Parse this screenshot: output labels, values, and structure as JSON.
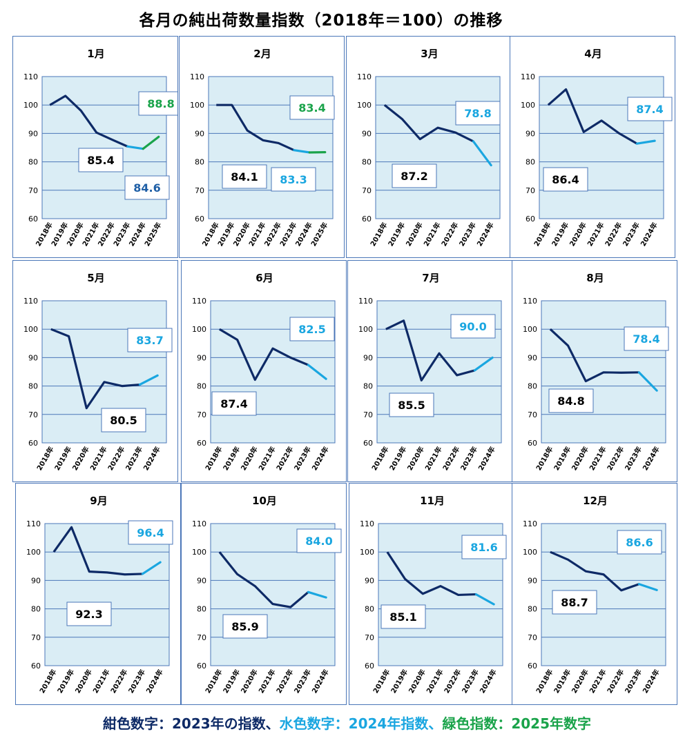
{
  "title": "各月の純出荷数量指数（2018年＝100）の推移",
  "legend": {
    "navy_label": "紺色数字：2023年の指数、",
    "cyan_label": "水色数字：2024年指数、",
    "green_label": "緑色指数：2025年数字",
    "colors": {
      "navy": "#0e2a66",
      "cyan": "#1aa6e0",
      "green": "#1aa34a"
    }
  },
  "chart_data": [
    {
      "type": "line",
      "title": "1月",
      "years": [
        "2018年",
        "2019年",
        "2020年",
        "2021年",
        "2022年",
        "2023年",
        "2024年",
        "2025年"
      ],
      "values": [
        100,
        103.2,
        98,
        90.3,
        87.8,
        85.4,
        84.6,
        88.8
      ],
      "ylim": [
        60,
        110
      ],
      "yticks": [
        60,
        70,
        80,
        90,
        100,
        110
      ],
      "labels": {
        "2023": "85.4",
        "2024": "84.6",
        "2025": "88.8"
      }
    },
    {
      "type": "line",
      "title": "2月",
      "years": [
        "2018年",
        "2019年",
        "2020年",
        "2021年",
        "2022年",
        "2023年",
        "2024年",
        "2025年"
      ],
      "values": [
        100,
        100,
        91,
        87.6,
        86.6,
        84.1,
        83.3,
        83.4
      ],
      "ylim": [
        60,
        110
      ],
      "yticks": [
        60,
        70,
        80,
        90,
        100,
        110
      ],
      "labels": {
        "2023": "84.1",
        "2024": "83.3",
        "2025": "83.4"
      }
    },
    {
      "type": "line",
      "title": "3月",
      "years": [
        "2018年",
        "2019年",
        "2020年",
        "2021年",
        "2022年",
        "2023年",
        "2024年"
      ],
      "values": [
        100,
        95,
        88,
        92,
        90.3,
        87.2,
        78.8
      ],
      "ylim": [
        60,
        110
      ],
      "yticks": [
        60,
        70,
        80,
        90,
        100,
        110
      ],
      "labels": {
        "2023": "87.2",
        "2024": "78.8"
      }
    },
    {
      "type": "line",
      "title": "4月",
      "years": [
        "2018年",
        "2019年",
        "2020年",
        "2021年",
        "2022年",
        "2023年",
        "2024年"
      ],
      "values": [
        100,
        105.5,
        90.5,
        94.5,
        90,
        86.4,
        87.4
      ],
      "ylim": [
        60,
        110
      ],
      "yticks": [
        60,
        70,
        80,
        90,
        100,
        110
      ],
      "labels": {
        "2023": "86.4",
        "2024": "87.4"
      }
    },
    {
      "type": "line",
      "title": "5月",
      "years": [
        "2018年",
        "2019年",
        "2020年",
        "2021年",
        "2022年",
        "2023年",
        "2024年"
      ],
      "values": [
        100,
        97.5,
        72.2,
        81.4,
        80,
        80.5,
        83.7
      ],
      "ylim": [
        60,
        110
      ],
      "yticks": [
        60,
        70,
        80,
        90,
        100,
        110
      ],
      "labels": {
        "2023": "80.5",
        "2024": "83.7"
      }
    },
    {
      "type": "line",
      "title": "6月",
      "years": [
        "2018年",
        "2019年",
        "2020年",
        "2021年",
        "2022年",
        "2023年",
        "2024年"
      ],
      "values": [
        100,
        96.3,
        82.2,
        93.2,
        90,
        87.4,
        82.5
      ],
      "ylim": [
        60,
        110
      ],
      "yticks": [
        60,
        70,
        80,
        90,
        100,
        110
      ],
      "labels": {
        "2023": "87.4",
        "2024": "82.5"
      }
    },
    {
      "type": "line",
      "title": "7月",
      "years": [
        "2018年",
        "2019年",
        "2020年",
        "2021年",
        "2022年",
        "2023年",
        "2024年"
      ],
      "values": [
        100,
        103,
        82,
        91.5,
        83.8,
        85.5,
        90.0
      ],
      "ylim": [
        60,
        110
      ],
      "yticks": [
        60,
        70,
        80,
        90,
        100,
        110
      ],
      "labels": {
        "2023": "85.5",
        "2024": "90.0"
      }
    },
    {
      "type": "line",
      "title": "8月",
      "years": [
        "2018年",
        "2019年",
        "2020年",
        "2021年",
        "2022年",
        "2023年",
        "2024年"
      ],
      "values": [
        100,
        94.2,
        81.7,
        84.8,
        84.7,
        84.8,
        78.4
      ],
      "ylim": [
        60,
        110
      ],
      "yticks": [
        60,
        70,
        80,
        90,
        100,
        110
      ],
      "labels": {
        "2023": "84.8",
        "2024": "78.4"
      }
    },
    {
      "type": "line",
      "title": "9月",
      "years": [
        "2018年",
        "2019年",
        "2020年",
        "2021年",
        "2022年",
        "2023年",
        "2024年"
      ],
      "values": [
        100,
        108.7,
        93.1,
        92.8,
        92.1,
        92.3,
        96.4
      ],
      "ylim": [
        60,
        110
      ],
      "yticks": [
        60,
        70,
        80,
        90,
        100,
        110
      ],
      "labels": {
        "2023": "92.3",
        "2024": "96.4"
      }
    },
    {
      "type": "line",
      "title": "10月",
      "years": [
        "2018年",
        "2019年",
        "2020年",
        "2021年",
        "2022年",
        "2023年",
        "2024年"
      ],
      "values": [
        100,
        92.2,
        88,
        81.7,
        80.6,
        85.9,
        84.0
      ],
      "ylim": [
        60,
        110
      ],
      "yticks": [
        60,
        70,
        80,
        90,
        100,
        110
      ],
      "labels": {
        "2023": "85.9",
        "2024": "84.0"
      }
    },
    {
      "type": "line",
      "title": "11月",
      "years": [
        "2018年",
        "2019年",
        "2020年",
        "2021年",
        "2022年",
        "2023年",
        "2024年"
      ],
      "values": [
        100,
        90.5,
        85.3,
        88,
        84.9,
        85.1,
        81.6
      ],
      "ylim": [
        60,
        110
      ],
      "yticks": [
        60,
        70,
        80,
        90,
        100,
        110
      ],
      "labels": {
        "2023": "85.1",
        "2024": "81.6"
      }
    },
    {
      "type": "line",
      "title": "12月",
      "years": [
        "2018年",
        "2019年",
        "2020年",
        "2021年",
        "2022年",
        "2023年",
        "2024年"
      ],
      "values": [
        100,
        97.3,
        93.2,
        92.1,
        86.5,
        88.7,
        86.6
      ],
      "ylim": [
        60,
        110
      ],
      "yticks": [
        60,
        70,
        80,
        90,
        100,
        110
      ],
      "labels": {
        "2023": "88.7",
        "2024": "86.6"
      }
    }
  ]
}
